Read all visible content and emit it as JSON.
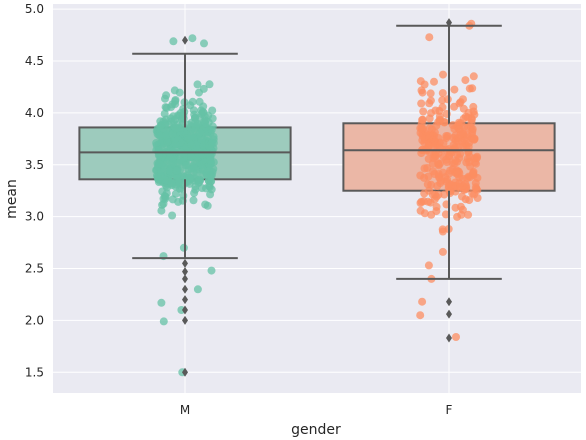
{
  "chart_data": {
    "type": "box",
    "title": "",
    "xlabel": "gender",
    "ylabel": "mean",
    "categories": [
      "M",
      "F"
    ],
    "ylim": [
      1.3,
      5.05
    ],
    "yticks": [
      1.5,
      2.0,
      2.5,
      3.0,
      3.5,
      4.0,
      4.5,
      5.0
    ],
    "ytick_labels": [
      "1.5",
      "2.0",
      "2.5",
      "3.0",
      "3.5",
      "4.0",
      "4.5",
      "5.0"
    ],
    "grid": true,
    "style": "seaborn-darkgrid",
    "colors": {
      "background": "#eaeaf2",
      "grid": "#ffffff",
      "box_edge": "#595959",
      "M_box": "#9dcbbd",
      "M_points": "#66c2a5",
      "F_box": "#ebb7a6",
      "F_points": "#fc8d62"
    },
    "boxes": [
      {
        "category": "M",
        "whisker_low": 2.6,
        "q1": 3.36,
        "median": 3.62,
        "q3": 3.86,
        "whisker_high": 4.57,
        "outliers": [
          4.7,
          2.55,
          2.47,
          2.4,
          2.3,
          2.2,
          2.1,
          2.0,
          1.5
        ]
      },
      {
        "category": "F",
        "whisker_low": 2.4,
        "q1": 3.25,
        "median": 3.64,
        "q3": 3.9,
        "whisker_high": 4.84,
        "outliers": [
          4.87,
          2.18,
          2.06,
          1.83
        ]
      }
    ],
    "strip_points": {
      "M": {
        "count": 480,
        "center": 3.62,
        "spread": 0.33,
        "min": 2.55,
        "max": 4.7,
        "extra": [
          4.69,
          4.67,
          4.72,
          2.3,
          2.17,
          2.1,
          1.99,
          2.62,
          2.7,
          2.48,
          1.5
        ]
      },
      "F": {
        "count": 280,
        "center": 3.62,
        "spread": 0.42,
        "min": 2.4,
        "max": 4.86,
        "extra": [
          4.86,
          4.84,
          4.73,
          2.18,
          2.05,
          1.84,
          2.4,
          2.66,
          2.53
        ]
      }
    }
  }
}
